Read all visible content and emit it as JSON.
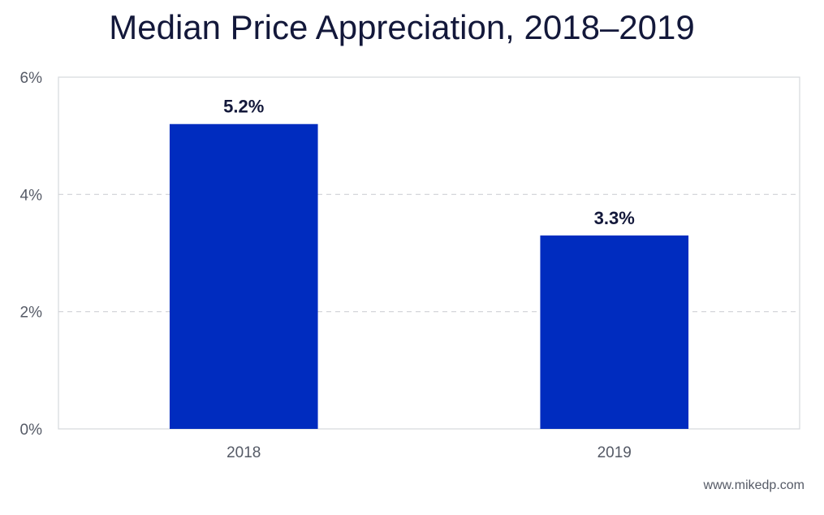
{
  "chart_data": {
    "type": "bar",
    "title": "Median Price Appreciation, 2018–2019",
    "categories": [
      "2018",
      "2019"
    ],
    "values": [
      5.2,
      3.3
    ],
    "data_labels": [
      "5.2%",
      "3.3%"
    ],
    "y_ticks": [
      "0%",
      "2%",
      "4%",
      "6%"
    ],
    "ylim": [
      0,
      6
    ],
    "xlabel": "",
    "ylabel": "",
    "grid": true,
    "bar_color": "#002cbf"
  },
  "footer": {
    "credit": "www.mikedp.com"
  }
}
